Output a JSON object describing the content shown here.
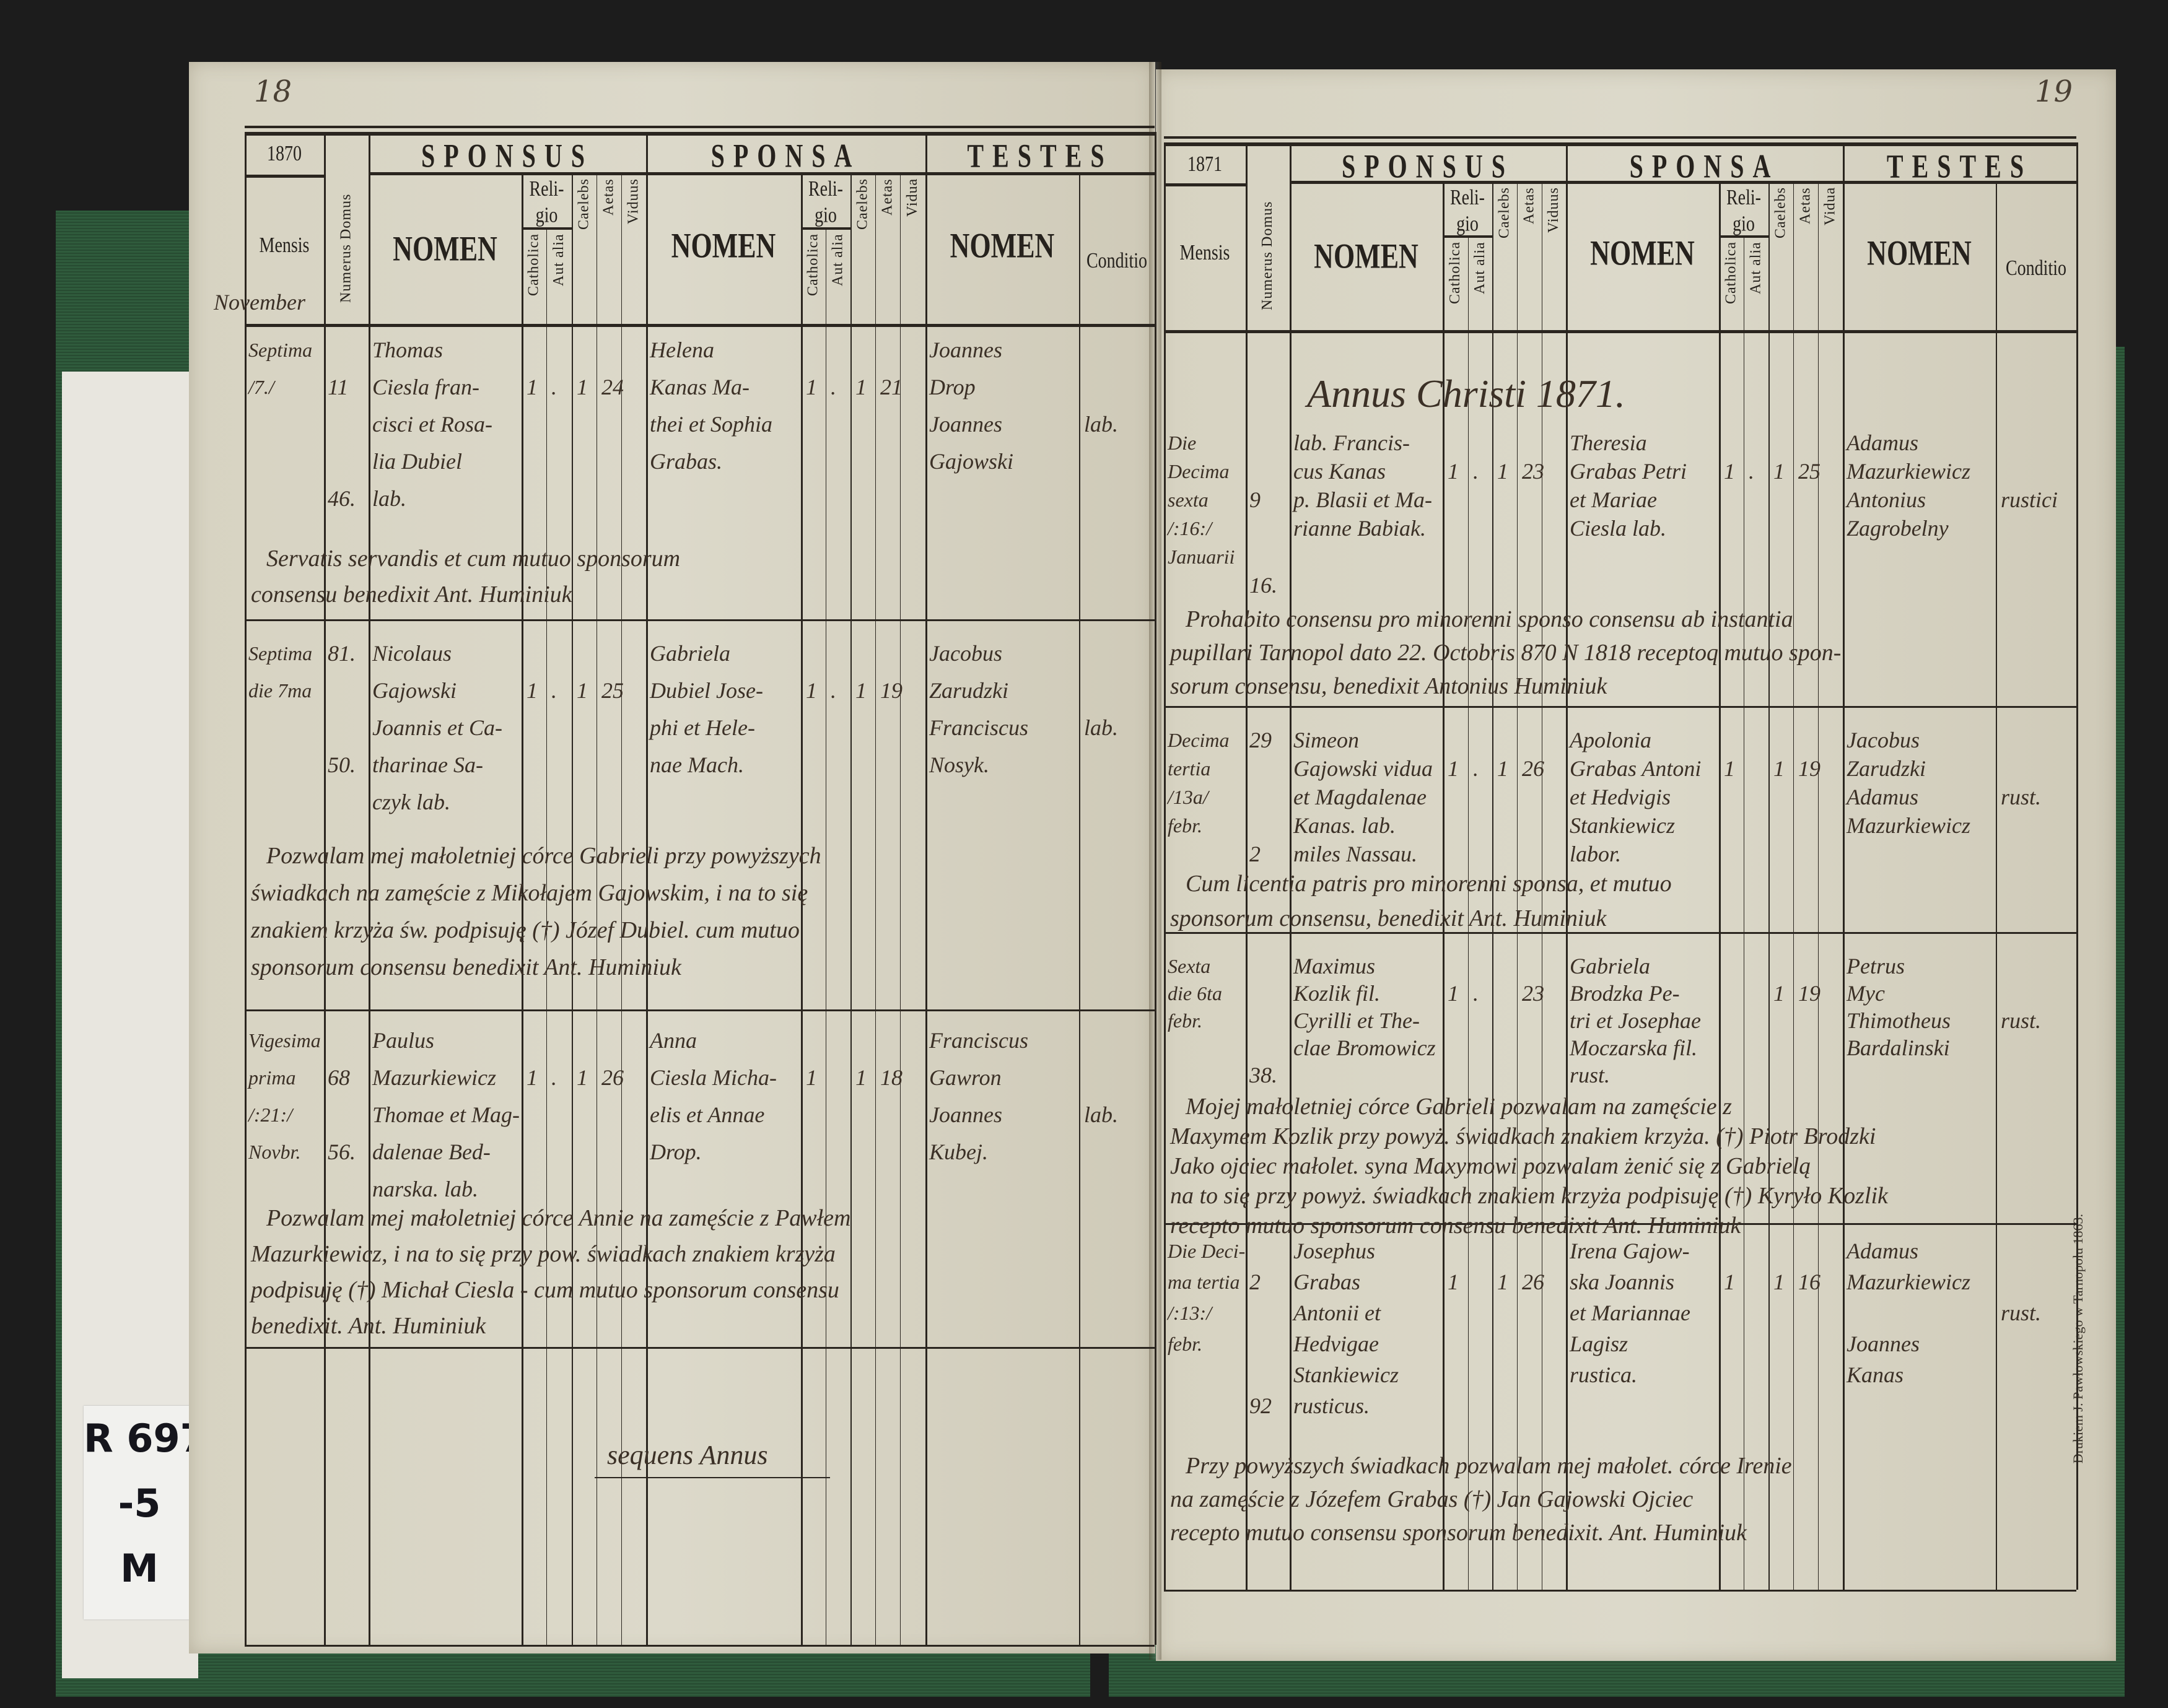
{
  "page_numbers": {
    "left": "18",
    "right": "19"
  },
  "label": {
    "lines": [
      "R 697",
      "-5",
      "M"
    ]
  },
  "imprint": "Drukiem J. Pawłowskiego w Tarnopolu 1863.",
  "header": {
    "mensis": "Mensis",
    "numerus_domus": "Numerus Domus",
    "sponsus": "SPONSUS",
    "sponsa": "SPONSA",
    "testes": "TESTES",
    "nomen": "NOMEN",
    "religio": "Reli-gio",
    "catholica": "Catholica",
    "aut_alia": "Aut alia",
    "caelebs": "Caelebs",
    "aetas": "Aetas",
    "viduus": "Viduus",
    "vidua": "Vidua",
    "conditio": "Conditio"
  },
  "left_page": {
    "year": "1870",
    "month": "November",
    "closing": "sequens Annus",
    "entries": [
      {
        "date": [
          "Septima",
          "/7./"
        ],
        "domus": [
          "",
          "11",
          "",
          "",
          "46."
        ],
        "sponsus": {
          "nomen": [
            "Thomas",
            "Ciesla fran-",
            "cisci et Rosa-",
            "lia Dubiel",
            "lab."
          ],
          "catholica": "1",
          "aut_alia": ".",
          "caelebs": "1",
          "aetas": "24",
          "viduus": ""
        },
        "sponsa": {
          "nomen": [
            "Helena",
            "Kanas Ma-",
            "thei et Sophia",
            "Grabas."
          ],
          "catholica": "1",
          "aut_alia": ".",
          "caelebs": "1",
          "aetas": "21",
          "vidua": ""
        },
        "testes": [
          "Joannes",
          "Drop",
          "Joannes",
          "Gajowski"
        ],
        "conditio": "lab.",
        "note": [
          "Servatis servandis et cum mutuo sponsorum",
          "consensu benedixit Ant. Huminiuk"
        ]
      },
      {
        "date": [
          "Septima",
          "die 7ma"
        ],
        "domus": [
          "81.",
          "",
          "",
          "50."
        ],
        "sponsus": {
          "nomen": [
            "Nicolaus",
            "Gajowski",
            "Joannis et Ca-",
            "tharinae Sa-",
            "czyk lab."
          ],
          "catholica": "1",
          "aut_alia": ".",
          "caelebs": "1",
          "aetas": "25",
          "viduus": ""
        },
        "sponsa": {
          "nomen": [
            "Gabriela",
            "Dubiel Jose-",
            "phi et Hele-",
            "nae Mach."
          ],
          "catholica": "1",
          "aut_alia": ".",
          "caelebs": "1",
          "aetas": "19",
          "vidua": ""
        },
        "testes": [
          "Jacobus",
          "Zarudzki",
          "Franciscus",
          "Nosyk."
        ],
        "conditio": "lab.",
        "note": [
          "Pozwalam mej małoletniej córce Gabrieli przy powyższych",
          "świadkach na zamęście z Mikołajem Gajowskim, i na to się",
          "znakiem krzyża św. podpisuję (†) Józef Dubiel. cum mutuo",
          "sponsorum consensu benedixit Ant. Huminiuk"
        ]
      },
      {
        "date": [
          "Vigesima",
          "prima",
          "/:21:/",
          "Novbr."
        ],
        "domus": [
          "",
          "68",
          "",
          "56."
        ],
        "sponsus": {
          "nomen": [
            "Paulus",
            "Mazurkiewicz",
            "Thomae et Mag-",
            "dalenae Bed-",
            "narska. lab."
          ],
          "catholica": "1",
          "aut_alia": ".",
          "caelebs": "1",
          "aetas": "26",
          "viduus": ""
        },
        "sponsa": {
          "nomen": [
            "Anna",
            "Ciesla Micha-",
            "elis et Annae",
            "Drop."
          ],
          "catholica": "1",
          "aut_alia": "",
          "caelebs": "1",
          "aetas": "18",
          "vidua": ""
        },
        "testes": [
          "Franciscus",
          "Gawron",
          "Joannes",
          "Kubej."
        ],
        "conditio": "lab.",
        "note": [
          "Pozwalam mej małoletniej córce Annie na zamęście z Pawłem",
          "Mazurkiewicz, i na to się przy pow. świadkach znakiem krzyża",
          "podpisuję (†) Michał Ciesla - cum mutuo sponsorum consensu",
          "benedixit. Ant. Huminiuk"
        ]
      }
    ]
  },
  "right_page": {
    "year": "1871",
    "heading": "Annus Christi 1871.",
    "entries": [
      {
        "date": [
          "Die",
          "Decima",
          "sexta",
          "/:16:/",
          "Januarii"
        ],
        "domus": [
          "",
          "",
          "9",
          "",
          "",
          "16."
        ],
        "sponsus": {
          "nomen": [
            "lab. Francis-",
            "cus Kanas",
            "p. Blasii et Ma-",
            "rianne Babiak."
          ],
          "catholica": "1",
          "aut_alia": ".",
          "caelebs": "1",
          "aetas": "23",
          "viduus": ""
        },
        "sponsa": {
          "nomen": [
            "Theresia",
            "Grabas Petri",
            "et Mariae",
            "Ciesla lab."
          ],
          "catholica": "1",
          "aut_alia": ".",
          "caelebs": "1",
          "aetas": "25",
          "vidua": ""
        },
        "testes": [
          "Adamus",
          "Mazurkiewicz",
          "Antonius",
          "Zagrobelny"
        ],
        "conditio": "rustici",
        "note": [
          "Prohabito consensu pro minorenni sponso consensu ab instantia",
          "pupillari Tarnopol dato 22. Octobris 870 N 1818 receptoq mutuo spon-",
          "sorum consensu, benedixit Antonius Huminiuk"
        ]
      },
      {
        "date": [
          "Decima",
          "tertia",
          "/13a/",
          "febr."
        ],
        "domus": [
          "29",
          "",
          "",
          "",
          "2"
        ],
        "sponsus": {
          "nomen": [
            "Simeon",
            "Gajowski vidua",
            "et Magdalenae",
            "Kanas. lab.",
            "miles Nassau."
          ],
          "catholica": "1",
          "aut_alia": ".",
          "caelebs": "1",
          "aetas": "26",
          "viduus": ""
        },
        "sponsa": {
          "nomen": [
            "Apolonia",
            "Grabas Antoni",
            "et Hedvigis",
            "Stankiewicz",
            "labor."
          ],
          "catholica": "1",
          "aut_alia": "",
          "caelebs": "1",
          "aetas": "19",
          "vidua": ""
        },
        "testes": [
          "Jacobus",
          "Zarudzki",
          "Adamus",
          "Mazurkiewicz"
        ],
        "conditio": "rust.",
        "note": [
          "Cum licentia patris pro minorenni sponsa, et mutuo",
          "sponsorum consensu, benedixit Ant. Huminiuk"
        ]
      },
      {
        "date": [
          "Sexta",
          "die 6ta",
          "febr."
        ],
        "domus": [
          "",
          "",
          "",
          "",
          "38."
        ],
        "sponsus": {
          "nomen": [
            "Maximus",
            "Kozlik fil.",
            "Cyrilli et The-",
            "clae Bromowicz"
          ],
          "catholica": "1",
          "aut_alia": ".",
          "caelebs": "",
          "aetas": "23",
          "viduus": ""
        },
        "sponsa": {
          "nomen": [
            "Gabriela",
            "Brodzka Pe-",
            "tri et Josephae",
            "Moczarska fil.",
            "rust."
          ],
          "catholica": "",
          "aut_alia": "",
          "caelebs": "1",
          "aetas": "19",
          "vidua": ""
        },
        "testes": [
          "Petrus",
          "Myc",
          "Thimotheus",
          "Bardalinski"
        ],
        "conditio": "rust.",
        "note": [
          "Mojej małoletniej córce Gabrieli pozwalam na zamęście z",
          "Maxymem Kozlik przy powyż. świadkach znakiem krzyża. (†) Piotr Brodzki",
          "Jako ojciec małolet. syna Maxymowi pozwalam żenić się z Gabrielą",
          "na to się przy powyż. świadkach znakiem krzyża podpisuję (†) Kyryło Kozlik",
          "recepto mutuo sponsorum consensu benedixit Ant. Huminiuk"
        ]
      },
      {
        "date": [
          "Die Deci-",
          "ma tertia",
          "/:13:/",
          "febr."
        ],
        "domus": [
          "",
          "2",
          "",
          "",
          "",
          "92"
        ],
        "sponsus": {
          "nomen": [
            "Josephus",
            "Grabas",
            "Antonii et",
            "Hedvigae",
            "Stankiewicz",
            "rusticus."
          ],
          "catholica": "1",
          "aut_alia": "",
          "caelebs": "1",
          "aetas": "26",
          "viduus": ""
        },
        "sponsa": {
          "nomen": [
            "Irena Gajow-",
            "ska Joannis",
            "et Mariannae",
            "Lagisz",
            "rustica."
          ],
          "catholica": "1",
          "aut_alia": "",
          "caelebs": "1",
          "aetas": "16",
          "vidua": ""
        },
        "testes": [
          "Adamus",
          "Mazurkiewicz",
          "",
          "Joannes",
          "Kanas"
        ],
        "conditio": "rust.",
        "note": [
          "Przy powyższych świadkach pozwalam mej małolet. córce Irenie",
          "na zamęście z Józefem Grabas (†) Jan Gajowski Ojciec",
          "recepto mutuo consensu sponsorum benedixit. Ant. Huminiuk"
        ]
      }
    ]
  }
}
